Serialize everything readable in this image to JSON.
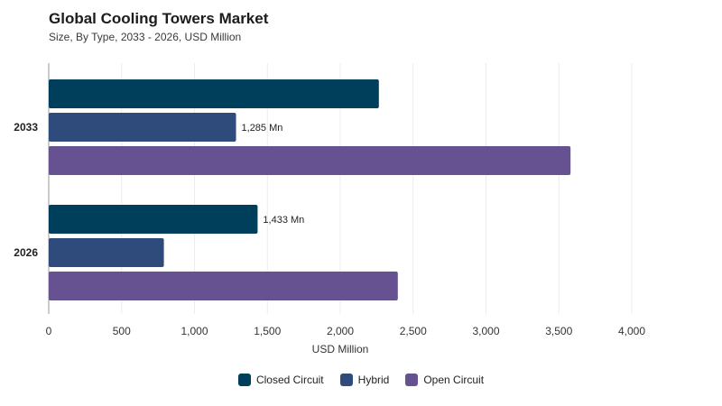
{
  "header": {
    "title": "Global Cooling Towers Market",
    "subtitle": "Size, By Type, 2033 - 2026, USD Million"
  },
  "chart_data": {
    "type": "bar",
    "orientation": "horizontal",
    "categories": [
      "2033",
      "2026"
    ],
    "series": [
      {
        "name": "Closed Circuit",
        "color": "#003f5c",
        "values": [
          2265,
          1433
        ],
        "labels": [
          "",
          "1,433 Mn"
        ]
      },
      {
        "name": "Hybrid",
        "color": "#2f4b7c",
        "values": [
          1285,
          790
        ],
        "labels": [
          "1,285 Mn",
          ""
        ]
      },
      {
        "name": "Open Circuit",
        "color": "#665191",
        "values": [
          3580,
          2395
        ],
        "labels": [
          "",
          ""
        ]
      }
    ],
    "xlabel": "USD Million",
    "xlim": [
      0,
      4000
    ],
    "xticks": [
      0,
      500,
      1000,
      1500,
      2000,
      2500,
      3000,
      3500,
      4000
    ],
    "xtick_labels": [
      "0",
      "500",
      "1,000",
      "1,500",
      "2,000",
      "2,500",
      "3,000",
      "3,500",
      "4,000"
    ],
    "grid": true,
    "legend_position": "bottom"
  }
}
